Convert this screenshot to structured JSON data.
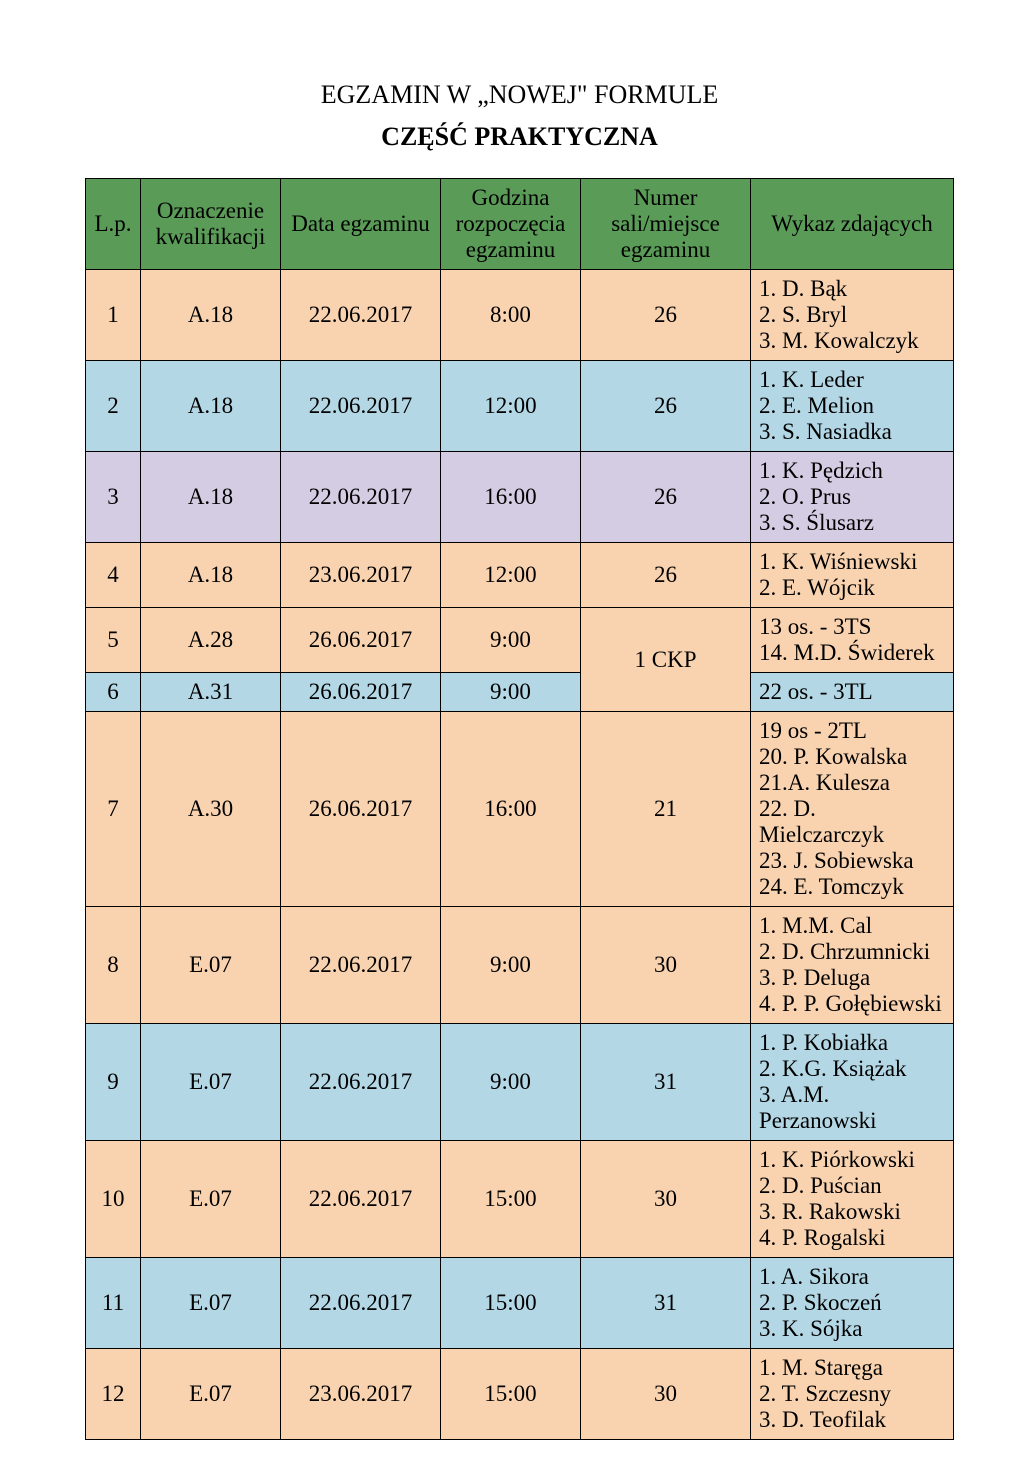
{
  "title_line1": "EGZAMIN W „NOWEJ\" FORMULE",
  "title_line2": "CZĘŚĆ PRAKTYCZNA",
  "headers": {
    "lp": "L.p.",
    "kw": "Oznaczenie kwalifikacji",
    "dat": "Data egzaminu",
    "god": "Godzina rozpoczęcia egzaminu",
    "sal": "Numer sali/miejsce egzaminu",
    "wyk": "Wykaz zdających"
  },
  "colors": {
    "header_bg": "#5a9b57",
    "peach": "#f9d3b0",
    "blue": "#b3d7e5",
    "lavender": "#d3cce3",
    "border": "#000000",
    "text": "#000000"
  },
  "rows": {
    "r1": {
      "lp": "1",
      "kw": "A.18",
      "dat": "22.06.2017",
      "god": "8:00",
      "sal": "26",
      "wyk": "1. D. Bąk\n2. S. Bryl\n3. M. Kowalczyk"
    },
    "r2": {
      "lp": "2",
      "kw": "A.18",
      "dat": "22.06.2017",
      "god": "12:00",
      "sal": "26",
      "wyk": "1. K. Leder\n2. E. Melion\n3. S. Nasiadka"
    },
    "r3": {
      "lp": "3",
      "kw": "A.18",
      "dat": "22.06.2017",
      "god": "16:00",
      "sal": "26",
      "wyk": "1. K. Pędzich\n2. O. Prus\n3. S. Ślusarz"
    },
    "r4": {
      "lp": "4",
      "kw": "A.18",
      "dat": "23.06.2017",
      "god": "12:00",
      "sal": "26",
      "wyk": "1. K. Wiśniewski\n2. E. Wójcik"
    },
    "r5": {
      "lp": "5",
      "kw": "A.28",
      "dat": "26.06.2017",
      "god": "9:00",
      "sal": "1 CKP",
      "wyk": "13 os. - 3TS\n14. M.D. Świderek"
    },
    "r6": {
      "lp": "6",
      "kw": "A.31",
      "dat": "26.06.2017",
      "god": "9:00",
      "wyk": "22 os. - 3TL"
    },
    "r7": {
      "lp": "7",
      "kw": "A.30",
      "dat": "26.06.2017",
      "god": "16:00",
      "sal": "21",
      "wyk": "19 os - 2TL\n20. P. Kowalska\n21.A. Kulesza\n22. D. Mielczarczyk\n23. J. Sobiewska\n24. E. Tomczyk"
    },
    "r8": {
      "lp": "8",
      "kw": "E.07",
      "dat": "22.06.2017",
      "god": "9:00",
      "sal": "30",
      "wyk": "1. M.M. Cal\n2. D. Chrzumnicki\n3. P. Deluga\n4. P. P. Gołębiewski"
    },
    "r9": {
      "lp": "9",
      "kw": "E.07",
      "dat": "22.06.2017",
      "god": "9:00",
      "sal": "31",
      "wyk": "1. P. Kobiałka\n2. K.G. Książak\n3. A.M. Perzanowski"
    },
    "r10": {
      "lp": "10",
      "kw": "E.07",
      "dat": "22.06.2017",
      "god": "15:00",
      "sal": "30",
      "wyk": "1. K. Piórkowski\n2. D. Puścian\n3. R. Rakowski\n4. P. Rogalski"
    },
    "r11": {
      "lp": "11",
      "kw": "E.07",
      "dat": "22.06.2017",
      "god": "15:00",
      "sal": "31",
      "wyk": "1. A. Sikora\n2. P. Skoczeń\n3. K. Sójka"
    },
    "r12": {
      "lp": "12",
      "kw": "E.07",
      "dat": "23.06.2017",
      "god": "15:00",
      "sal": "30",
      "wyk": "1. M. Staręga\n2. T. Szczesny\n3. D. Teofilak"
    }
  }
}
